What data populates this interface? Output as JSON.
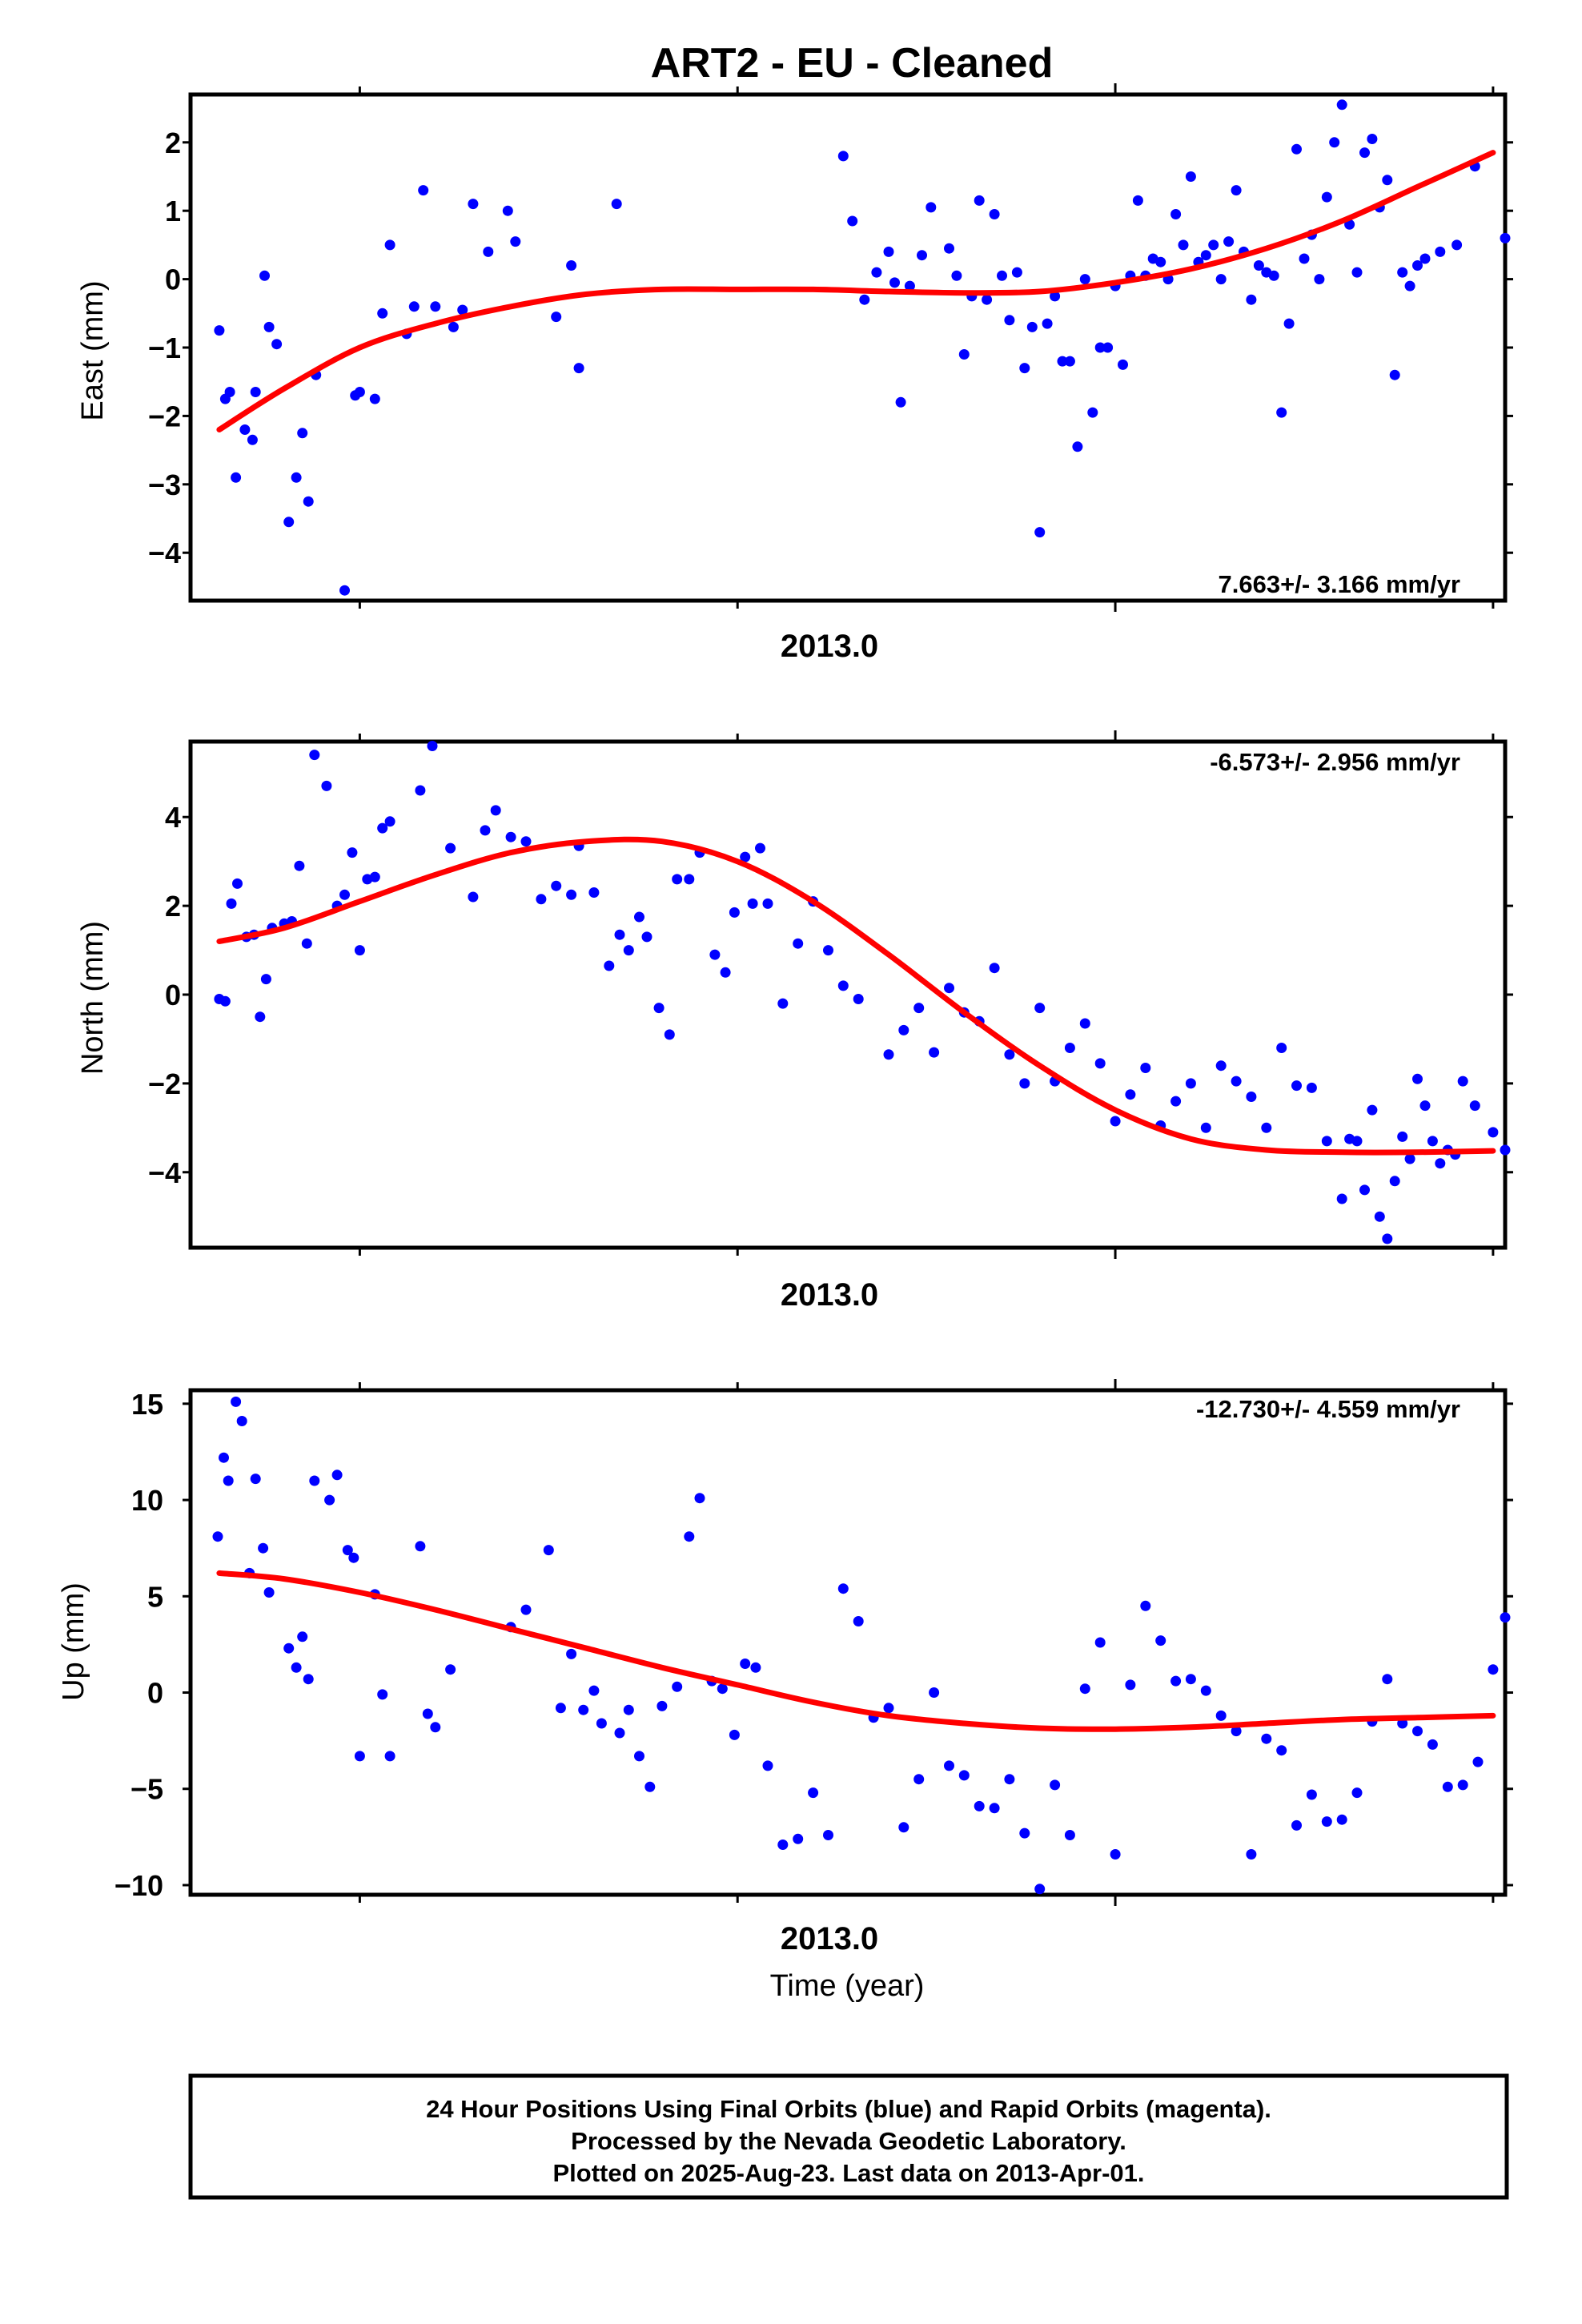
{
  "title": "ART2  - EU - Cleaned",
  "xlabel": "Time (year)",
  "footer": {
    "line1": "24 Hour Positions Using Final Orbits (blue) and Rapid Orbits (magenta).",
    "line2": "Processed by the Nevada Geodetic Laboratory.",
    "line3": "Plotted on 2025-Aug-23. Last data on 2013-Apr-01."
  },
  "colors": {
    "points": "#0000ff",
    "fit": "#ff0000",
    "axes": "#000000"
  },
  "chart_data": [
    {
      "type": "scatter",
      "ylabel": "East (mm)",
      "rate": "7.663+/- 3.166 mm/yr",
      "rate_placement": "bottom-right",
      "xlim": [
        2012.388,
        2013.258
      ],
      "ylim": [
        -4.7,
        2.7
      ],
      "yticks": [
        2,
        1,
        0,
        -1,
        -2,
        -3,
        -4
      ],
      "x_tick_label": "2013.0",
      "x_tick_label_value": 2013.0,
      "x_minor_ticks": [
        2012.5,
        2012.75,
        2013.0,
        2013.25
      ],
      "fit": {
        "x": [
          2012.407,
          2012.45,
          2012.5,
          2012.55,
          2012.6,
          2012.65,
          2012.7,
          2012.75,
          2012.8,
          2012.85,
          2012.9,
          2012.95,
          2013.0,
          2013.05,
          2013.1,
          2013.15,
          2013.2,
          2013.25
        ],
        "y": [
          -2.2,
          -1.6,
          -1.0,
          -0.65,
          -0.4,
          -0.22,
          -0.15,
          -0.15,
          -0.15,
          -0.18,
          -0.2,
          -0.18,
          -0.05,
          0.15,
          0.45,
          0.85,
          1.35,
          1.85
        ]
      },
      "points": {
        "x": [
          2012.407,
          2012.411,
          2012.414,
          2012.418,
          2012.424,
          2012.429,
          2012.431,
          2012.437,
          2012.44,
          2012.445,
          2012.453,
          2012.458,
          2012.462,
          2012.466,
          2012.471,
          2012.49,
          2012.497,
          2012.5,
          2012.51,
          2012.515,
          2012.52,
          2012.531,
          2012.536,
          2012.542,
          2012.55,
          2012.562,
          2012.568,
          2012.575,
          2012.585,
          2012.598,
          2012.603,
          2012.63,
          2012.64,
          2012.645,
          2012.67,
          2012.82,
          2012.826,
          2012.834,
          2012.842,
          2012.85,
          2012.854,
          2012.858,
          2012.864,
          2012.872,
          2012.878,
          2012.89,
          2012.895,
          2012.9,
          2012.905,
          2012.91,
          2012.915,
          2012.92,
          2012.925,
          2012.93,
          2012.935,
          2012.94,
          2012.945,
          2012.95,
          2012.955,
          2012.96,
          2012.965,
          2012.97,
          2012.975,
          2012.98,
          2012.985,
          2012.99,
          2012.995,
          2013.0,
          2013.005,
          2013.01,
          2013.015,
          2013.02,
          2013.025,
          2013.03,
          2013.035,
          2013.04,
          2013.045,
          2013.05,
          2013.055,
          2013.06,
          2013.065,
          2013.07,
          2013.075,
          2013.08,
          2013.085,
          2013.09,
          2013.095,
          2013.1,
          2013.105,
          2013.11,
          2013.115,
          2013.12,
          2013.125,
          2013.13,
          2013.135,
          2013.14,
          2013.145,
          2013.15,
          2013.155,
          2013.16,
          2013.165,
          2013.17,
          2013.175,
          2013.18,
          2013.185,
          2013.19,
          2013.195,
          2013.2,
          2013.205,
          2013.215,
          2013.226,
          2013.238,
          2013.258
        ],
        "y": [
          -0.75,
          -1.75,
          -1.65,
          -2.9,
          -2.2,
          -2.35,
          -1.65,
          0.05,
          -0.7,
          -0.95,
          -3.55,
          -2.9,
          -2.25,
          -3.25,
          -1.4,
          -4.55,
          -1.7,
          -1.65,
          -1.75,
          -0.5,
          0.5,
          -0.8,
          -0.4,
          1.3,
          -0.4,
          -0.7,
          -0.45,
          1.1,
          0.4,
          1.0,
          0.55,
          -0.55,
          0.2,
          -1.3,
          1.1,
          1.8,
          0.85,
          -0.3,
          0.1,
          0.4,
          -0.05,
          -1.8,
          -0.1,
          0.35,
          1.05,
          0.45,
          0.05,
          -1.1,
          -0.25,
          1.15,
          -0.3,
          0.95,
          0.05,
          -0.6,
          0.1,
          -1.3,
          -0.7,
          -3.7,
          -0.65,
          -0.25,
          -1.2,
          -1.2,
          -2.45,
          0.0,
          -1.95,
          -1.0,
          -1.0,
          -0.1,
          -1.25,
          0.05,
          1.15,
          0.05,
          0.3,
          0.25,
          0.0,
          0.95,
          0.5,
          1.5,
          0.25,
          0.35,
          0.5,
          0.0,
          0.55,
          1.3,
          0.4,
          -0.3,
          0.2,
          0.1,
          0.05,
          -1.95,
          -0.65,
          1.9,
          0.3,
          0.65,
          0.0,
          1.2,
          2.0,
          2.55,
          0.8,
          0.1,
          1.85,
          2.05,
          1.05,
          1.45,
          -1.4,
          0.1,
          -0.1,
          0.2,
          0.3,
          0.4,
          0.5,
          1.65,
          0.6
        ]
      }
    },
    {
      "type": "scatter",
      "ylabel": "North (mm)",
      "rate": "-6.573+/- 2.956 mm/yr",
      "rate_placement": "top-right",
      "xlim": [
        2012.388,
        2013.258
      ],
      "ylim": [
        -5.7,
        5.7
      ],
      "yticks": [
        4,
        2,
        0,
        -2,
        -4
      ],
      "x_tick_label": "2013.0",
      "x_tick_label_value": 2013.0,
      "x_minor_ticks": [
        2012.5,
        2012.75,
        2013.0,
        2013.25
      ],
      "fit": {
        "x": [
          2012.407,
          2012.45,
          2012.5,
          2012.55,
          2012.6,
          2012.65,
          2012.7,
          2012.75,
          2012.8,
          2012.85,
          2012.9,
          2012.95,
          2013.0,
          2013.05,
          2013.1,
          2013.15,
          2013.2,
          2013.25
        ],
        "y": [
          1.2,
          1.5,
          2.1,
          2.7,
          3.2,
          3.45,
          3.45,
          3.0,
          2.1,
          0.9,
          -0.4,
          -1.6,
          -2.6,
          -3.25,
          -3.5,
          -3.55,
          -3.55,
          -3.52
        ]
      },
      "points": {
        "x": [
          2012.407,
          2012.411,
          2012.415,
          2012.419,
          2012.425,
          2012.43,
          2012.434,
          2012.438,
          2012.442,
          2012.45,
          2012.455,
          2012.46,
          2012.465,
          2012.47,
          2012.478,
          2012.485,
          2012.49,
          2012.495,
          2012.5,
          2012.505,
          2012.51,
          2012.515,
          2012.52,
          2012.54,
          2012.548,
          2012.56,
          2012.575,
          2012.583,
          2012.59,
          2012.6,
          2012.61,
          2012.62,
          2012.63,
          2012.64,
          2012.645,
          2012.655,
          2012.665,
          2012.672,
          2012.678,
          2012.685,
          2012.69,
          2012.698,
          2012.705,
          2012.71,
          2012.718,
          2012.725,
          2012.735,
          2012.742,
          2012.748,
          2012.755,
          2012.76,
          2012.765,
          2012.77,
          2012.78,
          2012.79,
          2012.8,
          2012.81,
          2012.82,
          2012.83,
          2012.85,
          2012.86,
          2012.87,
          2012.88,
          2012.89,
          2012.9,
          2012.91,
          2012.92,
          2012.93,
          2012.94,
          2012.95,
          2012.96,
          2012.97,
          2012.98,
          2012.99,
          2013.0,
          2013.01,
          2013.02,
          2013.03,
          2013.04,
          2013.05,
          2013.06,
          2013.07,
          2013.08,
          2013.09,
          2013.1,
          2013.11,
          2013.12,
          2013.13,
          2013.14,
          2013.15,
          2013.155,
          2013.16,
          2013.165,
          2013.17,
          2013.175,
          2013.18,
          2013.185,
          2013.19,
          2013.195,
          2013.2,
          2013.205,
          2013.21,
          2013.215,
          2013.22,
          2013.225,
          2013.23,
          2013.238,
          2013.25,
          2013.258
        ],
        "y": [
          -0.1,
          -0.15,
          2.05,
          2.5,
          1.3,
          1.35,
          -0.5,
          0.35,
          1.5,
          1.6,
          1.65,
          2.9,
          1.15,
          5.4,
          4.7,
          2.0,
          2.25,
          3.2,
          1.0,
          2.6,
          2.65,
          3.75,
          3.9,
          4.6,
          5.6,
          3.3,
          2.2,
          3.7,
          4.15,
          3.55,
          3.45,
          2.15,
          2.45,
          2.25,
          3.35,
          2.3,
          0.65,
          1.35,
          1.0,
          1.75,
          1.3,
          -0.3,
          -0.9,
          2.6,
          2.6,
          3.2,
          0.9,
          0.5,
          1.85,
          3.1,
          2.05,
          3.3,
          2.05,
          -0.2,
          1.15,
          2.1,
          1.0,
          0.2,
          -0.1,
          -1.35,
          -0.8,
          -0.3,
          -1.3,
          0.15,
          -0.4,
          -0.6,
          0.6,
          -1.35,
          -2.0,
          -0.3,
          -1.95,
          -1.2,
          -0.65,
          -1.55,
          -2.85,
          -2.25,
          -1.65,
          -2.95,
          -2.4,
          -2.0,
          -3.0,
          -1.6,
          -1.95,
          -2.3,
          -3.0,
          -1.2,
          -2.05,
          -2.1,
          -3.3,
          -4.6,
          -3.25,
          -3.3,
          -4.4,
          -2.6,
          -5.0,
          -5.5,
          -4.2,
          -3.2,
          -3.7,
          -1.9,
          -2.5,
          -3.3,
          -3.8,
          -3.5,
          -3.6,
          -1.95,
          -2.5,
          -3.1,
          -3.5
        ]
      }
    },
    {
      "type": "scatter",
      "ylabel": "Up (mm)",
      "rate": "-12.730+/- 4.559 mm/yr",
      "rate_placement": "top-right",
      "xlim": [
        2012.388,
        2013.258
      ],
      "ylim": [
        -10.5,
        15.7
      ],
      "yticks": [
        15,
        10,
        5,
        0,
        -5,
        -10
      ],
      "x_tick_label": "2013.0",
      "x_tick_label_value": 2013.0,
      "x_minor_ticks": [
        2012.5,
        2012.75,
        2013.0,
        2013.25
      ],
      "fit": {
        "x": [
          2012.407,
          2012.45,
          2012.5,
          2012.55,
          2012.6,
          2012.65,
          2012.7,
          2012.75,
          2012.8,
          2012.85,
          2012.9,
          2012.95,
          2013.0,
          2013.05,
          2013.1,
          2013.15,
          2013.2,
          2013.25
        ],
        "y": [
          6.2,
          5.9,
          5.2,
          4.3,
          3.3,
          2.3,
          1.3,
          0.4,
          -0.5,
          -1.2,
          -1.6,
          -1.85,
          -1.9,
          -1.8,
          -1.6,
          -1.4,
          -1.3,
          -1.2
        ]
      },
      "points": {
        "x": [
          2012.406,
          2012.41,
          2012.413,
          2012.418,
          2012.422,
          2012.427,
          2012.431,
          2012.436,
          2012.44,
          2012.453,
          2012.458,
          2012.462,
          2012.466,
          2012.47,
          2012.48,
          2012.485,
          2012.492,
          2012.496,
          2012.5,
          2012.51,
          2012.515,
          2012.52,
          2012.54,
          2012.545,
          2012.55,
          2012.56,
          2012.6,
          2012.61,
          2012.625,
          2012.633,
          2012.64,
          2012.648,
          2012.655,
          2012.66,
          2012.672,
          2012.678,
          2012.685,
          2012.692,
          2012.7,
          2012.71,
          2012.718,
          2012.725,
          2012.733,
          2012.74,
          2012.748,
          2012.755,
          2012.762,
          2012.77,
          2012.78,
          2012.79,
          2012.8,
          2012.81,
          2012.82,
          2012.83,
          2012.84,
          2012.85,
          2012.86,
          2012.87,
          2012.88,
          2012.89,
          2012.9,
          2012.91,
          2012.92,
          2012.93,
          2012.94,
          2012.95,
          2012.96,
          2012.97,
          2012.98,
          2012.99,
          2013.0,
          2013.01,
          2013.02,
          2013.03,
          2013.04,
          2013.05,
          2013.06,
          2013.07,
          2013.08,
          2013.09,
          2013.1,
          2013.11,
          2013.12,
          2013.13,
          2013.14,
          2013.15,
          2013.16,
          2013.17,
          2013.18,
          2013.19,
          2013.2,
          2013.21,
          2013.22,
          2013.23,
          2013.24,
          2013.25,
          2013.258
        ],
        "y": [
          8.1,
          12.2,
          11.0,
          15.1,
          14.1,
          6.2,
          11.1,
          7.5,
          5.2,
          2.3,
          1.3,
          2.9,
          0.7,
          11.0,
          10.0,
          11.3,
          7.4,
          7.0,
          -3.3,
          5.1,
          -0.1,
          -3.3,
          7.6,
          -1.1,
          -1.8,
          1.2,
          3.4,
          4.3,
          7.4,
          -0.8,
          2.0,
          -0.9,
          0.1,
          -1.6,
          -2.1,
          -0.9,
          -3.3,
          -4.9,
          -0.7,
          0.3,
          8.1,
          10.1,
          0.6,
          0.2,
          -2.2,
          1.5,
          1.3,
          -3.8,
          -7.9,
          -7.6,
          -5.2,
          -7.4,
          5.4,
          3.7,
          -1.3,
          -0.8,
          -7.0,
          -4.5,
          0.0,
          -3.8,
          -4.3,
          -5.9,
          -6.0,
          -4.5,
          -7.3,
          -10.2,
          -4.8,
          -7.4,
          0.2,
          2.6,
          -8.4,
          0.4,
          4.5,
          2.7,
          0.6,
          0.7,
          0.1,
          -1.2,
          -2.0,
          -8.4,
          -2.4,
          -3.0,
          -6.9,
          -5.3,
          -6.7,
          -6.6,
          -5.2,
          -1.5,
          0.7,
          -1.6,
          -2.0,
          -2.7,
          -4.9,
          -4.8,
          -3.6,
          1.2,
          3.9
        ]
      }
    }
  ]
}
